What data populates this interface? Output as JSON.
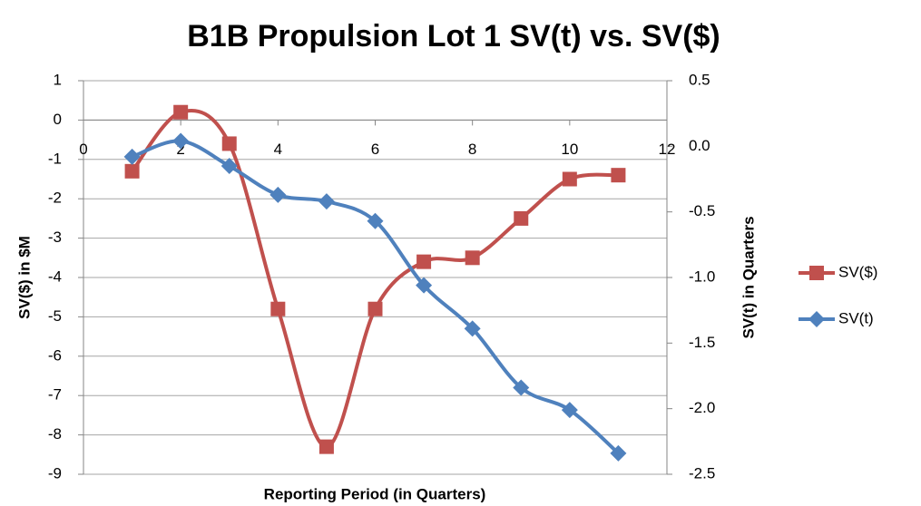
{
  "chart_data": {
    "type": "line",
    "title": "B1B Propulsion Lot 1 SV(t) vs. SV($)",
    "x_label": "Reporting Period (in Quarters)",
    "y_label": "SV($) in $M",
    "y2_label": "SV(t) in Quarters",
    "xlim": [
      0,
      12
    ],
    "xticks": [
      0,
      2,
      4,
      6,
      8,
      10,
      12
    ],
    "ylim": [
      -9,
      1
    ],
    "yticks": [
      -9,
      -8,
      -7,
      -6,
      -5,
      -4,
      -3,
      -2,
      -1,
      0,
      1
    ],
    "y2lim": [
      -2.5,
      0.5
    ],
    "y2ticks": [
      {
        "value": -2.5,
        "label": "-2.5"
      },
      {
        "value": -2,
        "label": "-2.0"
      },
      {
        "value": -1.5,
        "label": "-1.5"
      },
      {
        "value": -1,
        "label": "-1.0"
      },
      {
        "value": -0.5,
        "label": "-0.5"
      },
      {
        "value": 0,
        "label": "0.0"
      },
      0.5
    ],
    "grid": true,
    "legend": "right",
    "series": [
      {
        "name": "SV($)",
        "color": "#c0504d",
        "marker": "square",
        "x": [
          1,
          2,
          3,
          4,
          5,
          6,
          7,
          8,
          9,
          10,
          11
        ],
        "values": [
          -1.3,
          0.2,
          -0.6,
          -4.8,
          -8.3,
          -4.8,
          -3.6,
          -3.5,
          -2.5,
          -1.5,
          -1.4
        ]
      },
      {
        "name": "SV(t)",
        "color": "#4f81bd",
        "marker": "diamond",
        "axis": "y2",
        "x": [
          1,
          2,
          3,
          4,
          5,
          6,
          7,
          8,
          9,
          10,
          11
        ],
        "values": [
          -0.08,
          0.04,
          -0.15,
          -0.37,
          -0.42,
          -0.57,
          -1.06,
          -1.39,
          -1.84,
          -2.01,
          -2.34
        ]
      }
    ]
  }
}
